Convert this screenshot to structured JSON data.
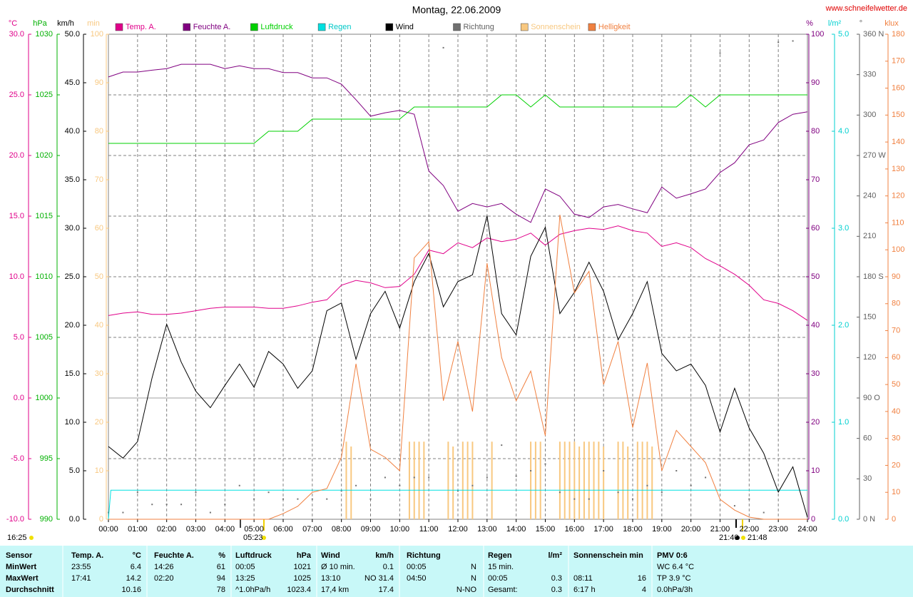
{
  "chart_data": {
    "type": "line",
    "title": "Montag, 22.06.2009",
    "subtitle": "www.schneifelwetter.de",
    "annotations": [
      "16:25",
      "05:23",
      "21:40",
      "21:48"
    ],
    "grid": true,
    "xlim": [
      0,
      1440
    ],
    "xticks": [
      {
        "value": 0,
        "label": "00:00"
      },
      {
        "value": 60,
        "label": "01:00"
      },
      {
        "value": 120,
        "label": "02:00"
      },
      {
        "value": 180,
        "label": "03:00"
      },
      {
        "value": 240,
        "label": "04:00"
      },
      {
        "value": 300,
        "label": "05:00"
      },
      {
        "value": 360,
        "label": "06:00"
      },
      {
        "value": 420,
        "label": "07:00"
      },
      {
        "value": 480,
        "label": "08:00"
      },
      {
        "value": 540,
        "label": "09:00"
      },
      {
        "value": 600,
        "label": "10:00"
      },
      {
        "value": 660,
        "label": "11:00"
      },
      {
        "value": 720,
        "label": "12:00"
      },
      {
        "value": 780,
        "label": "13:00"
      },
      {
        "value": 840,
        "label": "14:00"
      },
      {
        "value": 900,
        "label": "15:00"
      },
      {
        "value": 960,
        "label": "16:00"
      },
      {
        "value": 1020,
        "label": "17:00"
      },
      {
        "value": 1080,
        "label": "18:00"
      },
      {
        "value": 1140,
        "label": "19:00"
      },
      {
        "value": 1200,
        "label": "20:00"
      },
      {
        "value": 1260,
        "label": "21:00"
      },
      {
        "value": 1320,
        "label": "22:00"
      },
      {
        "value": 1380,
        "label": "23:00"
      },
      {
        "value": 1440,
        "label": "24:00"
      }
    ],
    "x": [
      0,
      30,
      60,
      90,
      120,
      150,
      180,
      210,
      240,
      270,
      300,
      330,
      360,
      390,
      420,
      450,
      480,
      510,
      540,
      570,
      600,
      630,
      660,
      690,
      720,
      750,
      780,
      810,
      840,
      870,
      900,
      930,
      960,
      990,
      1020,
      1050,
      1080,
      1110,
      1140,
      1170,
      1200,
      1230,
      1260,
      1290,
      1320,
      1350,
      1380,
      1410,
      1440
    ],
    "axes": [
      {
        "unit": "°C",
        "color": "#e0008a",
        "lim": [
          -10,
          30
        ],
        "ticks": [
          {
            "value": -10,
            "label": "-10.0"
          },
          {
            "value": -5,
            "label": "-5.0"
          },
          {
            "value": 0,
            "label": "0.0"
          },
          {
            "value": 5,
            "label": "5.0"
          },
          {
            "value": 10,
            "label": "10.0"
          },
          {
            "value": 15,
            "label": "15.0"
          },
          {
            "value": 20,
            "label": "20.0"
          },
          {
            "value": 25,
            "label": "25.0"
          },
          {
            "value": 30,
            "label": "30.0"
          }
        ]
      },
      {
        "unit": "hPa",
        "color": "#00b000",
        "lim": [
          990,
          1030
        ],
        "ticks": [
          990,
          995,
          1000,
          1005,
          1010,
          1015,
          1020,
          1025,
          1030
        ]
      },
      {
        "unit": "km/h",
        "color": "#000000",
        "lim": [
          0,
          50
        ],
        "ticks": [
          {
            "value": 0,
            "label": "0.0"
          },
          {
            "value": 5,
            "label": "5.0"
          },
          {
            "value": 10,
            "label": "10.0"
          },
          {
            "value": 15,
            "label": "15.0"
          },
          {
            "value": 20,
            "label": "20.0"
          },
          {
            "value": 25,
            "label": "25.0"
          },
          {
            "value": 30,
            "label": "30.0"
          },
          {
            "value": 35,
            "label": "35.0"
          },
          {
            "value": 40,
            "label": "40.0"
          },
          {
            "value": 45,
            "label": "45.0"
          },
          {
            "value": 50,
            "label": "50.0"
          }
        ]
      },
      {
        "unit": "min",
        "color": "#f8c880",
        "lim": [
          0,
          100
        ],
        "ticks": [
          0,
          10,
          20,
          30,
          40,
          50,
          60,
          70,
          80,
          90,
          100
        ]
      },
      {
        "unit": "%",
        "color": "#800080",
        "lim": [
          0,
          100
        ],
        "ticks": [
          0,
          10,
          20,
          30,
          40,
          50,
          60,
          70,
          80,
          90,
          100
        ]
      },
      {
        "unit": "l/m²",
        "color": "#00d0d0",
        "lim": [
          0,
          5
        ],
        "ticks": [
          {
            "value": 0,
            "label": "0.0"
          },
          {
            "value": 1,
            "label": "1.0"
          },
          {
            "value": 2,
            "label": "2.0"
          },
          {
            "value": 3,
            "label": "3.0"
          },
          {
            "value": 4,
            "label": "4.0"
          },
          {
            "value": 5,
            "label": "5.0"
          }
        ]
      },
      {
        "unit": "°",
        "color": "#606060",
        "lim": [
          0,
          360
        ],
        "ticks": [
          {
            "value": 0,
            "label": "0 N"
          },
          30,
          60,
          {
            "value": 90,
            "label": "90 O"
          },
          120,
          150,
          {
            "value": 180,
            "label": "180 S"
          },
          210,
          240,
          {
            "value": 270,
            "label": "270 W"
          },
          300,
          330,
          {
            "value": 360,
            "label": "360 N"
          }
        ]
      },
      {
        "unit": "klux",
        "color": "#f08040",
        "lim": [
          0,
          180
        ],
        "ticks": [
          0,
          10,
          20,
          30,
          40,
          50,
          60,
          70,
          80,
          90,
          100,
          110,
          120,
          130,
          140,
          150,
          160,
          170,
          180
        ]
      }
    ],
    "series": [
      {
        "name": "Temp. A.",
        "type": "line",
        "color": "#e0008a",
        "axis": 0,
        "values": [
          6.8,
          7.0,
          7.1,
          6.9,
          6.9,
          7.0,
          7.2,
          7.4,
          7.5,
          7.5,
          7.5,
          7.4,
          7.4,
          7.6,
          7.9,
          8.1,
          9.3,
          9.7,
          9.5,
          9.1,
          9.2,
          10.2,
          12.2,
          11.9,
          12.8,
          12.4,
          13.2,
          12.9,
          13.1,
          13.6,
          12.6,
          13.5,
          13.8,
          14.0,
          13.9,
          14.2,
          13.8,
          13.6,
          12.5,
          12.8,
          12.4,
          11.5,
          10.9,
          10.2,
          9.3,
          8.1,
          7.8,
          7.2,
          6.4
        ]
      },
      {
        "name": "Feuchte A.",
        "type": "line",
        "color": "#800080",
        "axis": 4,
        "values": [
          91.2,
          92.2,
          92.2,
          92.6,
          92.9,
          93.8,
          93.8,
          93.8,
          92.9,
          93.5,
          92.9,
          92.9,
          92.1,
          92.1,
          91.0,
          91.0,
          89.7,
          86.5,
          83.1,
          83.8,
          84.3,
          83.5,
          71.8,
          68.8,
          63.5,
          65.1,
          64.4,
          65.1,
          62.9,
          61.2,
          68.1,
          66.6,
          62.9,
          62.2,
          64.4,
          64.9,
          64.0,
          63.2,
          68.5,
          66.2,
          67.1,
          68.1,
          71.5,
          73.5,
          77.2,
          78.2,
          81.8,
          83.5,
          84.0
        ]
      },
      {
        "name": "Luftdruck",
        "type": "line",
        "color": "#00d000",
        "axis": 1,
        "values": [
          1021,
          1021,
          1021,
          1021,
          1021,
          1021,
          1021,
          1021,
          1021,
          1021,
          1021,
          1022,
          1022,
          1022,
          1023,
          1023,
          1023,
          1023,
          1023,
          1023,
          1023,
          1024,
          1024,
          1024,
          1024,
          1024,
          1024,
          1025,
          1025,
          1024,
          1025,
          1024,
          1024,
          1024,
          1024,
          1024,
          1024,
          1024,
          1024,
          1024,
          1025,
          1024,
          1025,
          1025,
          1025,
          1025,
          1025,
          1025,
          1025
        ]
      },
      {
        "name": "Regen",
        "type": "line",
        "color": "#00e0e0",
        "axis": 5,
        "x": [
          0,
          5,
          1440
        ],
        "values": [
          0,
          0.3,
          0.3
        ]
      },
      {
        "name": "Wind",
        "type": "line",
        "color": "#000000",
        "axis": 2,
        "values": [
          7.5,
          6.3,
          8.0,
          14.6,
          20.1,
          16.2,
          13.2,
          11.5,
          13.8,
          16.0,
          13.6,
          17.3,
          16.0,
          13.5,
          15.3,
          21.5,
          22.3,
          16.5,
          21.2,
          23.5,
          19.7,
          24.5,
          27.4,
          21.9,
          24.5,
          25.2,
          31.3,
          21.2,
          19.0,
          27.1,
          30.1,
          21.2,
          23.4,
          26.5,
          23.5,
          18.5,
          21.2,
          24.5,
          17.1,
          15.3,
          16.0,
          13.8,
          9.0,
          13.5,
          9.4,
          6.8,
          2.8,
          5.4,
          0.2
        ]
      },
      {
        "name": "Richtung",
        "type": "scatter",
        "color": "#707070",
        "axis": 6,
        "values": [
          5,
          5,
          20,
          11,
          11,
          11,
          20,
          5,
          11,
          25,
          15,
          20,
          15,
          15,
          15,
          15,
          21,
          25,
          15,
          31,
          25,
          31,
          31,
          350,
          21,
          25,
          31,
          55,
          32,
          36,
          41,
          20,
          15,
          15,
          36,
          20,
          15,
          25,
          20,
          36,
          25,
          31,
          346,
          10,
          15,
          5,
          354,
          355,
          null
        ]
      },
      {
        "name": "Sonnenschein",
        "type": "bar",
        "color": "#f8c880",
        "axis": 3,
        "x": [
          490,
          500,
          620,
          630,
          640,
          650,
          700,
          710,
          730,
          740,
          750,
          790,
          870,
          880,
          890,
          930,
          940,
          950,
          960,
          970,
          980,
          990,
          1000,
          1010,
          1020,
          1050,
          1060,
          1070,
          1090,
          1100,
          1110,
          1120
        ],
        "values": [
          16,
          15,
          16,
          16,
          16,
          16,
          16,
          15,
          16,
          16,
          16,
          16,
          16,
          16,
          16,
          16,
          16,
          16,
          16,
          15,
          16,
          16,
          16,
          16,
          15,
          16,
          16,
          15,
          16,
          16,
          16,
          15
        ]
      },
      {
        "name": "Helligkeit",
        "type": "line",
        "color": "#f08040",
        "axis": 7,
        "values": [
          0,
          0,
          0,
          0,
          0,
          0,
          0,
          0,
          0,
          0,
          0,
          0,
          2.1,
          4.8,
          10,
          11.4,
          23,
          57.7,
          26,
          23,
          18,
          97,
          103,
          44,
          66,
          40,
          95,
          60,
          44,
          55,
          31,
          113,
          84,
          92,
          50,
          66,
          34,
          58,
          18,
          33,
          27,
          21,
          7.4,
          3.4,
          0.8,
          0,
          0,
          0,
          0
        ]
      }
    ]
  },
  "stats": {
    "header": [
      "Sensor",
      "Temp. A.",
      "°C",
      "Feuchte A.",
      "%",
      "Luftdruck",
      "hPa",
      "Wind",
      "km/h",
      "Richtung",
      null,
      "Regen",
      "l/m²",
      "Sonnenschein min",
      null,
      "PMV 0:6"
    ],
    "rows": [
      [
        "MinWert",
        "23:55",
        "6.4",
        "14:26",
        "61",
        "00:05",
        "1021",
        "Ø 10 min.",
        "0.1",
        "00:05",
        "N",
        "15 min.",
        null,
        null,
        null,
        "WC 6.4 °C"
      ],
      [
        "MaxWert",
        "17:41",
        "14.2",
        "02:20",
        "94",
        "13:25",
        "1025",
        "13:10",
        "NO 31.4",
        "04:50",
        "N",
        "00:05",
        "0.3",
        "08:11",
        "16",
        "TP 3.9 °C"
      ],
      [
        "Durchschnitt",
        null,
        "10.16",
        null,
        "78",
        "^1.0hPa/h",
        "1023.4",
        "17,4 km",
        "17.4",
        null,
        "N-NO",
        "Gesamt:",
        "0.3",
        "6:17 h",
        "4",
        "0.0hPa/3h"
      ]
    ]
  }
}
